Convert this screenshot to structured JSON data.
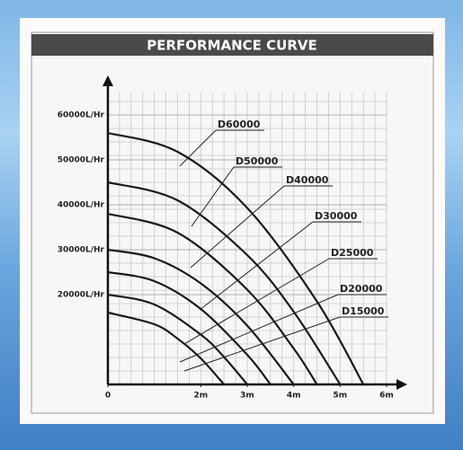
{
  "chart_data": {
    "type": "line",
    "title": "PERFORMANCE CURVE",
    "xlim": [
      0,
      6
    ],
    "xticks": [
      0,
      {
        "value": 2,
        "label": "2m"
      },
      {
        "value": 3,
        "label": "3m"
      },
      {
        "value": 4,
        "label": "4m"
      },
      {
        "value": 5,
        "label": "5m"
      },
      {
        "value": 6,
        "label": "6m"
      }
    ],
    "ylim": [
      0,
      65000
    ],
    "yticks": [
      {
        "value": 20000,
        "label": "20000L/Hr"
      },
      {
        "value": 30000,
        "label": "30000L/Hr"
      },
      {
        "value": 40000,
        "label": "40000L/Hr"
      },
      {
        "value": 50000,
        "label": "50000L/Hr"
      },
      {
        "value": 60000,
        "label": "60000L/Hr"
      }
    ],
    "grid": true,
    "series": [
      {
        "name": "D60000",
        "color": "#1a1a1a",
        "x": [
          0,
          1.5,
          3,
          4.5,
          5.5
        ],
        "values": [
          56000,
          51800,
          39300,
          18500,
          0
        ]
      },
      {
        "name": "D50000",
        "color": "#1a1a1a",
        "x": [
          0,
          1.5,
          3,
          4,
          5
        ],
        "values": [
          45000,
          41000,
          28800,
          16200,
          0
        ]
      },
      {
        "name": "D40000",
        "color": "#1a1a1a",
        "x": [
          0,
          1.5,
          3,
          4,
          4.5
        ],
        "values": [
          38000,
          33800,
          21100,
          8000,
          0
        ]
      },
      {
        "name": "D30000",
        "color": "#1a1a1a",
        "x": [
          0,
          1,
          2,
          3,
          4
        ],
        "values": [
          30000,
          28100,
          22500,
          13100,
          0
        ]
      },
      {
        "name": "D25000",
        "color": "#1a1a1a",
        "x": [
          0,
          1,
          2,
          3,
          3.5
        ],
        "values": [
          25000,
          23000,
          16800,
          6600,
          0
        ]
      },
      {
        "name": "D20000",
        "color": "#1a1a1a",
        "x": [
          0,
          1,
          2,
          2.5,
          3
        ],
        "values": [
          20000,
          17800,
          11100,
          6100,
          0
        ]
      },
      {
        "name": "D15000",
        "color": "#1a1a1a",
        "x": [
          0,
          1,
          1.5,
          2,
          2.5
        ],
        "values": [
          16000,
          13400,
          10200,
          5800,
          0
        ]
      }
    ]
  }
}
